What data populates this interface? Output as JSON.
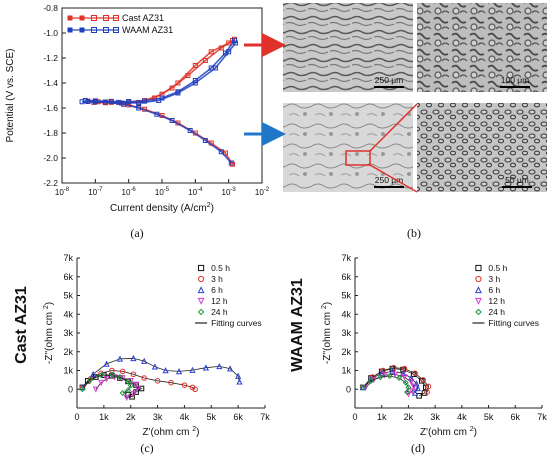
{
  "panels": [
    {
      "label": "(a)"
    },
    {
      "label": "(b)"
    },
    {
      "label": "(c)",
      "side_label": "Cast AZ31"
    },
    {
      "label": "(d)",
      "side_label": "WAAM AZ31"
    }
  ],
  "micrographs": {
    "scale_bars": [
      "250 μm",
      "100 μm",
      "250 μm",
      "50 μm"
    ],
    "arrow_colors": {
      "top": "#e0312a",
      "bottom": "#1f77c8",
      "zoom": "#e0312a"
    }
  },
  "chart_data": [
    {
      "type": "line",
      "title": "",
      "xlabel": "Current density (A/cm",
      "xlabel_sup": "2",
      "xlabel_end": ")",
      "ylabel": "Potential (V vs. SCE)",
      "xscale": "log",
      "xlim": [
        1e-08,
        0.01
      ],
      "ylim": [
        -2.2,
        -0.8
      ],
      "x_ticks": [
        {
          "b": "10",
          "e": "-8"
        },
        {
          "b": "10",
          "e": "-7"
        },
        {
          "b": "10",
          "e": "-6"
        },
        {
          "b": "10",
          "e": "-5"
        },
        {
          "b": "10",
          "e": "-4"
        },
        {
          "b": "10",
          "e": "-3"
        },
        {
          "b": "10",
          "e": "-2"
        }
      ],
      "y_ticks": [
        "-0.8",
        "-1.0",
        "-1.2",
        "-1.4",
        "-1.6",
        "-1.8",
        "-2.0",
        "-2.2"
      ],
      "legend_position": "top-left",
      "series": [
        {
          "name": "Cast AZ31",
          "color": "#e0312a",
          "curves": [
            {
              "points": [
                [
                  6e-08,
                  -1.545
                ],
                [
                  1e-07,
                  -1.547
                ],
                [
                  3e-07,
                  -1.552
                ],
                [
                  1e-06,
                  -1.555
                ],
                [
                  3e-06,
                  -1.54
                ],
                [
                  1e-05,
                  -1.49
                ],
                [
                  3e-05,
                  -1.4
                ],
                [
                  0.0001,
                  -1.26
                ],
                [
                  0.0003,
                  -1.15
                ],
                [
                  0.001,
                  -1.08
                ],
                [
                  0.0015,
                  -1.05
                ]
              ]
            },
            {
              "points": [
                [
                  9e-08,
                  -1.555
                ],
                [
                  2e-07,
                  -1.558
                ],
                [
                  6e-07,
                  -1.56
                ],
                [
                  2e-06,
                  -1.555
                ],
                [
                  6e-06,
                  -1.52
                ],
                [
                  2e-05,
                  -1.44
                ],
                [
                  6e-05,
                  -1.34
                ],
                [
                  0.0002,
                  -1.22
                ],
                [
                  0.0006,
                  -1.12
                ],
                [
                  0.0013,
                  -1.06
                ]
              ]
            },
            {
              "points": [
                [
                  1.2e-07,
                  -1.55
                ],
                [
                  3e-07,
                  -1.555
                ],
                [
                  1e-06,
                  -1.575
                ],
                [
                  3e-06,
                  -1.61
                ],
                [
                  1e-05,
                  -1.66
                ],
                [
                  3e-05,
                  -1.72
                ],
                [
                  0.0001,
                  -1.8
                ],
                [
                  0.0003,
                  -1.88
                ],
                [
                  0.0008,
                  -1.96
                ],
                [
                  0.0013,
                  -2.05
                ]
              ]
            }
          ]
        },
        {
          "name": "WAAM AZ31",
          "color": "#1f3fbf",
          "curves": [
            {
              "points": [
                [
                  5e-08,
                  -1.54
                ],
                [
                  1e-07,
                  -1.543
                ],
                [
                  3e-07,
                  -1.547
                ],
                [
                  1e-06,
                  -1.548
                ],
                [
                  3e-06,
                  -1.545
                ],
                [
                  1e-05,
                  -1.52
                ],
                [
                  3e-05,
                  -1.47
                ],
                [
                  0.0001,
                  -1.38
                ],
                [
                  0.0003,
                  -1.28
                ],
                [
                  0.0008,
                  -1.16
                ],
                [
                  0.0015,
                  -1.06
                ]
              ]
            },
            {
              "points": [
                [
                  4e-08,
                  -1.55
                ],
                [
                  1e-07,
                  -1.552
                ],
                [
                  5e-07,
                  -1.555
                ],
                [
                  2e-06,
                  -1.56
                ],
                [
                  8e-06,
                  -1.54
                ],
                [
                  3e-05,
                  -1.48
                ],
                [
                  0.0001,
                  -1.4
                ],
                [
                  0.0004,
                  -1.28
                ],
                [
                  0.001,
                  -1.15
                ],
                [
                  0.0016,
                  -1.08
                ]
              ]
            },
            {
              "points": [
                [
                  6e-08,
                  -1.548
                ],
                [
                  2e-07,
                  -1.552
                ],
                [
                  7e-07,
                  -1.57
                ],
                [
                  2e-06,
                  -1.6
                ],
                [
                  7e-06,
                  -1.65
                ],
                [
                  2e-05,
                  -1.7
                ],
                [
                  7e-05,
                  -1.78
                ],
                [
                  0.0002,
                  -1.86
                ],
                [
                  0.0006,
                  -1.95
                ],
                [
                  0.0012,
                  -2.04
                ]
              ]
            }
          ]
        }
      ]
    },
    {
      "type": "scatter",
      "title": "",
      "xlabel": "Z'(ohm cm ",
      "xlabel_sup": "2",
      "xlabel_end": ")",
      "ylabel": "-Z''(ohm cm ",
      "ylabel_sup": "2",
      "ylabel_end": ")",
      "xlim": [
        0,
        7000
      ],
      "ylim": [
        -1000,
        7000
      ],
      "x_ticks": [
        "0",
        "1k",
        "2k",
        "3k",
        "4k",
        "5k",
        "6k",
        "7k"
      ],
      "y_ticks": [
        "0",
        "1k",
        "2k",
        "3k",
        "4k",
        "5k",
        "6k",
        "7k"
      ],
      "legend_position": "top-right",
      "fit_label": "Fitting curves",
      "series": [
        {
          "name": "0.5 h",
          "color": "#111111",
          "marker": "square",
          "points": [
            [
              200,
              100
            ],
            [
              400,
              450
            ],
            [
              700,
              650
            ],
            [
              1000,
              750
            ],
            [
              1300,
              720
            ],
            [
              1600,
              600
            ],
            [
              1900,
              420
            ],
            [
              2200,
              220
            ],
            [
              2400,
              40
            ],
            [
              2200,
              -150
            ],
            [
              2050,
              -400
            ],
            [
              1900,
              -300
            ]
          ]
        },
        {
          "name": "3 h",
          "color": "#e0312a",
          "marker": "circle",
          "points": [
            [
              200,
              100
            ],
            [
              500,
              550
            ],
            [
              900,
              850
            ],
            [
              1300,
              1000
            ],
            [
              1700,
              950
            ],
            [
              2100,
              800
            ],
            [
              2500,
              600
            ],
            [
              3000,
              450
            ],
            [
              3500,
              350
            ],
            [
              4000,
              220
            ],
            [
              4300,
              100
            ],
            [
              4400,
              0
            ]
          ]
        },
        {
          "name": "6 h",
          "color": "#2a3fcf",
          "marker": "triangle-up",
          "points": [
            [
              200,
              100
            ],
            [
              600,
              800
            ],
            [
              1100,
              1350
            ],
            [
              1600,
              1620
            ],
            [
              2100,
              1650
            ],
            [
              2500,
              1500
            ],
            [
              2900,
              1200
            ],
            [
              3300,
              1000
            ],
            [
              3800,
              950
            ],
            [
              4300,
              1020
            ],
            [
              4800,
              1150
            ],
            [
              5300,
              1220
            ],
            [
              5700,
              1100
            ],
            [
              6000,
              700
            ],
            [
              6050,
              400
            ]
          ]
        },
        {
          "name": "12 h",
          "color": "#d83ad8",
          "marker": "triangle-down",
          "points": [
            [
              700,
              0
            ],
            [
              900,
              350
            ],
            [
              1100,
              550
            ],
            [
              1400,
              650
            ],
            [
              1700,
              600
            ],
            [
              2000,
              450
            ],
            [
              2200,
              250
            ],
            [
              2250,
              50
            ],
            [
              2100,
              -250
            ],
            [
              1850,
              -450
            ]
          ]
        },
        {
          "name": "24 h",
          "color": "#1a9a3a",
          "marker": "diamond",
          "points": [
            [
              200,
              0
            ],
            [
              500,
              500
            ],
            [
              900,
              750
            ],
            [
              1300,
              780
            ],
            [
              1600,
              650
            ],
            [
              1900,
              420
            ],
            [
              2000,
              200
            ],
            [
              1900,
              -50
            ],
            [
              1700,
              -200
            ]
          ]
        }
      ]
    },
    {
      "type": "scatter",
      "title": "",
      "xlabel": "Z'(ohm cm ",
      "xlabel_sup": "2",
      "xlabel_end": ")",
      "ylabel": "-Z''(ohm cm ",
      "ylabel_sup": "2",
      "ylabel_end": ")",
      "xlim": [
        0,
        7000
      ],
      "ylim": [
        -1000,
        7000
      ],
      "x_ticks": [
        "0",
        "1k",
        "2k",
        "3k",
        "4k",
        "5k",
        "6k",
        "7k"
      ],
      "y_ticks": [
        "0",
        "1k",
        "2k",
        "3k",
        "4k",
        "5k",
        "6k",
        "7k"
      ],
      "legend_position": "top-right",
      "fit_label": "Fitting curves",
      "series": [
        {
          "name": "0.5 h",
          "color": "#111111",
          "marker": "square",
          "points": [
            [
              300,
              100
            ],
            [
              600,
              600
            ],
            [
              1000,
              950
            ],
            [
              1400,
              1100
            ],
            [
              1800,
              1050
            ],
            [
              2200,
              800
            ],
            [
              2500,
              450
            ],
            [
              2650,
              100
            ],
            [
              2600,
              -200
            ],
            [
              2400,
              -350
            ]
          ]
        },
        {
          "name": "3 h",
          "color": "#e0312a",
          "marker": "circle",
          "points": [
            [
              300,
              100
            ],
            [
              650,
              650
            ],
            [
              1050,
              1000
            ],
            [
              1450,
              1150
            ],
            [
              1850,
              1100
            ],
            [
              2250,
              850
            ],
            [
              2550,
              500
            ],
            [
              2750,
              150
            ],
            [
              2700,
              -150
            ]
          ]
        },
        {
          "name": "6 h",
          "color": "#2a3fcf",
          "marker": "triangle-up",
          "points": [
            [
              300,
              100
            ],
            [
              600,
              550
            ],
            [
              1000,
              850
            ],
            [
              1400,
              950
            ],
            [
              1800,
              850
            ],
            [
              2100,
              600
            ],
            [
              2300,
              300
            ],
            [
              2350,
              50
            ],
            [
              2250,
              -200
            ]
          ]
        },
        {
          "name": "12 h",
          "color": "#d83ad8",
          "marker": "triangle-down",
          "points": [
            [
              400,
              100
            ],
            [
              700,
              500
            ],
            [
              1100,
              750
            ],
            [
              1500,
              800
            ],
            [
              1850,
              650
            ],
            [
              2100,
              400
            ],
            [
              2200,
              150
            ],
            [
              2150,
              -100
            ],
            [
              2000,
              -250
            ]
          ]
        },
        {
          "name": "24 h",
          "color": "#1a9a3a",
          "marker": "diamond",
          "points": [
            [
              300,
              100
            ],
            [
              600,
              450
            ],
            [
              950,
              650
            ],
            [
              1300,
              700
            ],
            [
              1650,
              600
            ],
            [
              1900,
              350
            ],
            [
              2000,
              100
            ],
            [
              1950,
              -150
            ]
          ]
        }
      ]
    }
  ]
}
